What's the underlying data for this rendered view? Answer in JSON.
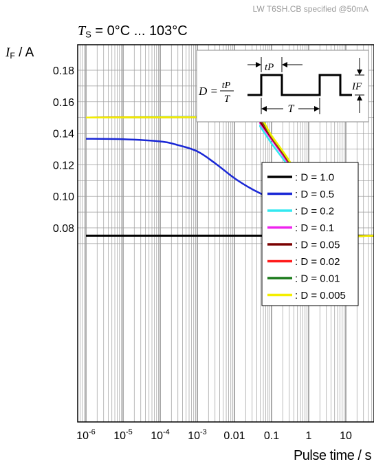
{
  "watermark": "LW T6SH.CB specified @50mA",
  "temperature_label": {
    "symbol": "T",
    "subscript": "S",
    "range": " = 0°C ... 103°C"
  },
  "y_axis_label": {
    "symbol": "I",
    "subscript": "F",
    "unit": " / A"
  },
  "x_axis_label": "Pulse time / s",
  "inset": {
    "formula_lhs": "D =",
    "numerator": "tP",
    "denominator": "T",
    "pulse_label": "tP",
    "period_label": "T",
    "current_label": "IF"
  },
  "chart_data": {
    "type": "line",
    "xscale": "log",
    "xlim": [
      1e-06,
      100
    ],
    "ylim": [
      0.065,
      0.19
    ],
    "x_ticks": [
      {
        "value": 1e-06,
        "base": "10",
        "exp": "-6"
      },
      {
        "value": 1e-05,
        "base": "10",
        "exp": "-5"
      },
      {
        "value": 0.0001,
        "base": "10",
        "exp": "-4"
      },
      {
        "value": 0.001,
        "base": "10",
        "exp": "-3"
      },
      {
        "value": 0.01,
        "base": "0.01",
        "exp": ""
      },
      {
        "value": 0.1,
        "base": "0.1",
        "exp": ""
      },
      {
        "value": 1,
        "base": "1",
        "exp": ""
      },
      {
        "value": 10,
        "base": "10",
        "exp": ""
      }
    ],
    "y_ticks": [
      0.08,
      0.1,
      0.12,
      0.14,
      0.16,
      0.18
    ],
    "y_tick_labels": [
      "0.08",
      "0.10",
      "0.12",
      "0.14",
      "0.16",
      "0.18"
    ],
    "grid": true,
    "legend_position": "right",
    "series": [
      {
        "name": ": D = 1.0",
        "color": "#000000",
        "points": [
          [
            1e-06,
            0.075
          ],
          [
            100,
            0.075
          ]
        ]
      },
      {
        "name": ": D = 0.5",
        "color": "#1a28d6",
        "points": [
          [
            1e-06,
            0.1365
          ],
          [
            1e-05,
            0.1362
          ],
          [
            0.0001,
            0.1348
          ],
          [
            0.0003,
            0.1325
          ],
          [
            0.001,
            0.1285
          ],
          [
            0.003,
            0.121
          ],
          [
            0.01,
            0.1115
          ],
          [
            0.03,
            0.1045
          ],
          [
            0.1,
            0.0985
          ],
          [
            0.3,
            0.093
          ],
          [
            0.6,
            0.0905
          ],
          [
            1,
            0.087
          ],
          [
            2,
            0.0805
          ],
          [
            5,
            0.0752
          ],
          [
            100,
            0.075
          ]
        ]
      },
      {
        "name": ": D = 0.2",
        "color": "#33e8f0",
        "points": [
          [
            1e-06,
            0.15
          ],
          [
            0.03,
            0.15
          ],
          [
            0.05,
            0.144
          ],
          [
            0.1,
            0.1335
          ],
          [
            0.3,
            0.118
          ],
          [
            1,
            0.097
          ],
          [
            2,
            0.085
          ],
          [
            3,
            0.078
          ],
          [
            5,
            0.075
          ],
          [
            100,
            0.075
          ]
        ]
      },
      {
        "name": ": D = 0.1",
        "color": "#ee22ee",
        "points": [
          [
            1e-06,
            0.15
          ],
          [
            0.035,
            0.15
          ],
          [
            0.05,
            0.146
          ],
          [
            0.1,
            0.136
          ],
          [
            0.3,
            0.12
          ],
          [
            1,
            0.099
          ],
          [
            2,
            0.087
          ],
          [
            3,
            0.079
          ],
          [
            5,
            0.075
          ],
          [
            100,
            0.075
          ]
        ]
      },
      {
        "name": ": D = 0.05",
        "color": "#7a0000",
        "points": [
          [
            1e-06,
            0.15
          ],
          [
            0.038,
            0.15
          ],
          [
            0.05,
            0.147
          ],
          [
            0.1,
            0.137
          ],
          [
            0.3,
            0.121
          ],
          [
            1,
            0.0995
          ],
          [
            2,
            0.0875
          ],
          [
            3,
            0.0795
          ],
          [
            5,
            0.075
          ],
          [
            100,
            0.075
          ]
        ]
      },
      {
        "name": ": D = 0.02",
        "color": "#ff1a1a",
        "points": [
          [
            1e-06,
            0.15
          ],
          [
            0.04,
            0.15
          ],
          [
            0.055,
            0.1475
          ],
          [
            0.1,
            0.1375
          ],
          [
            0.3,
            0.1215
          ],
          [
            1,
            0.1
          ],
          [
            2,
            0.088
          ],
          [
            3,
            0.08
          ],
          [
            5,
            0.075
          ],
          [
            100,
            0.075
          ]
        ]
      },
      {
        "name": ": D = 0.01",
        "color": "#1a7a1a",
        "points": [
          [
            1e-06,
            0.15
          ],
          [
            0.04,
            0.15
          ],
          [
            0.055,
            0.148
          ],
          [
            0.1,
            0.138
          ],
          [
            0.3,
            0.122
          ],
          [
            1,
            0.1005
          ],
          [
            2,
            0.0885
          ],
          [
            3,
            0.0805
          ],
          [
            5,
            0.075
          ],
          [
            100,
            0.075
          ]
        ]
      },
      {
        "name": ": D = 0.005",
        "color": "#f4ee00",
        "points": [
          [
            1e-06,
            0.15
          ],
          [
            0.042,
            0.15
          ],
          [
            0.06,
            0.1475
          ],
          [
            0.1,
            0.1385
          ],
          [
            0.3,
            0.1225
          ],
          [
            1,
            0.101
          ],
          [
            2,
            0.089
          ],
          [
            3,
            0.081
          ],
          [
            5,
            0.075
          ],
          [
            100,
            0.075
          ]
        ]
      }
    ]
  }
}
